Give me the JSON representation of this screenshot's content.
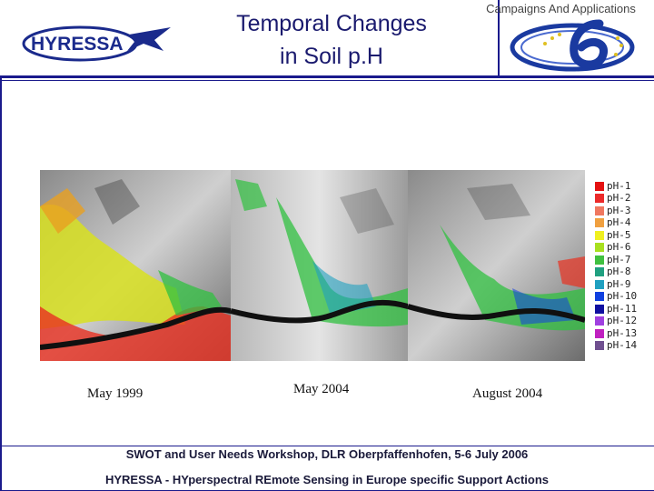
{
  "header": {
    "logo_text": "HYRESSA",
    "title_line1": "Temporal Changes",
    "title_line2": "in Soil p.H",
    "campaigns_text": "Campaigns And Applications"
  },
  "images": {
    "captions": [
      "May 1999",
      "May 2004",
      "August 2004"
    ]
  },
  "legend": {
    "items": [
      {
        "label": "pH-1",
        "color": "#e41010"
      },
      {
        "label": "pH-2",
        "color": "#ec2a2a"
      },
      {
        "label": "pH-3",
        "color": "#f07860"
      },
      {
        "label": "pH-4",
        "color": "#f0a040"
      },
      {
        "label": "pH-5",
        "color": "#f0f020"
      },
      {
        "label": "pH-6",
        "color": "#a8e020"
      },
      {
        "label": "pH-7",
        "color": "#40c040"
      },
      {
        "label": "pH-8",
        "color": "#20a080"
      },
      {
        "label": "pH-9",
        "color": "#20a0c0"
      },
      {
        "label": "pH-10",
        "color": "#1040e0"
      },
      {
        "label": "pH-11",
        "color": "#1010a0"
      },
      {
        "label": "pH-12",
        "color": "#a040e0"
      },
      {
        "label": "pH-13",
        "color": "#c020c0"
      },
      {
        "label": "pH-14",
        "color": "#705090"
      }
    ]
  },
  "footer": {
    "line1": "SWOT and User Needs Workshop, DLR Oberpfaffenhofen,  5-6 July 2006",
    "line2": "HYRESSA - HYperspectral REmote Sensing in Europe specific Support Actions"
  }
}
